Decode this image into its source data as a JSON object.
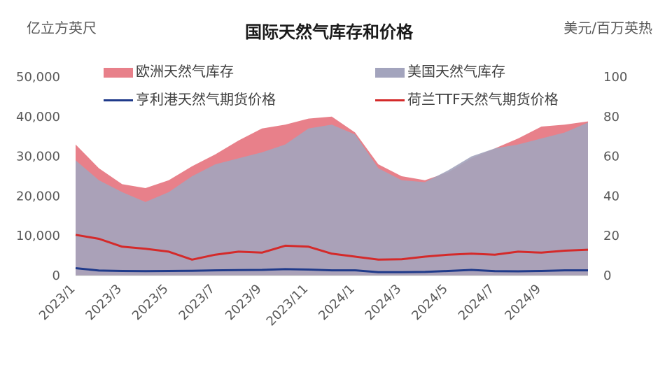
{
  "chart_data": {
    "type": "area",
    "title": "国际天然气库存和价格",
    "ylabel_left": "亿立方英尺",
    "ylabel_right": "美元/百万英热",
    "ylim_left": [
      0,
      50000
    ],
    "ylim_right": [
      0,
      100
    ],
    "yticks_left": [
      "0",
      "10,000",
      "20,000",
      "30,000",
      "40,000",
      "50,000"
    ],
    "yticks_right": [
      "0",
      "20",
      "40",
      "60",
      "80",
      "100"
    ],
    "x": [
      "2023/1",
      "2023/2",
      "2023/3",
      "2023/4",
      "2023/5",
      "2023/6",
      "2023/7",
      "2023/8",
      "2023/9",
      "2023/10",
      "2023/11",
      "2023/12",
      "2024/1",
      "2024/2",
      "2024/3",
      "2024/4",
      "2024/5",
      "2024/6",
      "2024/7",
      "2024/8",
      "2024/9",
      "2024/10",
      "2024/11"
    ],
    "xtick_labels": [
      "2023/1",
      "2023/3",
      "2023/5",
      "2023/7",
      "2023/9",
      "2023/11",
      "2024/1",
      "2024/3",
      "2024/5",
      "2024/7",
      "2024/9"
    ],
    "grid": false,
    "series": [
      {
        "name": "欧洲天然气库存",
        "kind": "area",
        "axis": "left",
        "color": "#e8808a",
        "values": [
          33000,
          27000,
          23000,
          22000,
          24000,
          27500,
          30500,
          34000,
          37000,
          38000,
          39500,
          40000,
          36000,
          28000,
          25000,
          24000,
          26000,
          29500,
          32000,
          34500,
          37500,
          38000,
          38800
        ]
      },
      {
        "name": "美国天然气库存",
        "kind": "area",
        "axis": "left",
        "color": "#a3a4bd",
        "values": [
          29000,
          24000,
          21000,
          18500,
          21000,
          25000,
          28000,
          29500,
          31000,
          33000,
          37000,
          38000,
          35500,
          27000,
          24000,
          23500,
          26500,
          30000,
          32000,
          33000,
          34500,
          36000,
          38500
        ]
      },
      {
        "name": "亨利港天然气期货价格",
        "kind": "line",
        "axis": "right",
        "color": "#1f3a8a",
        "values": [
          3.7,
          2.5,
          2.3,
          2.2,
          2.3,
          2.4,
          2.6,
          2.7,
          2.8,
          3.2,
          3.0,
          2.6,
          2.6,
          1.7,
          1.7,
          1.8,
          2.3,
          2.8,
          2.2,
          2.1,
          2.3,
          2.6,
          2.6
        ]
      },
      {
        "name": "荷兰TTF天然气期货价格",
        "kind": "line",
        "axis": "right",
        "color": "#d42a2a",
        "values": [
          20.5,
          18.5,
          14.5,
          13.5,
          12.0,
          8.0,
          10.5,
          12.0,
          11.5,
          15.0,
          14.5,
          11.0,
          9.5,
          8.0,
          8.2,
          9.5,
          10.5,
          11.0,
          10.5,
          12.0,
          11.5,
          12.5,
          13.0
        ]
      }
    ]
  }
}
